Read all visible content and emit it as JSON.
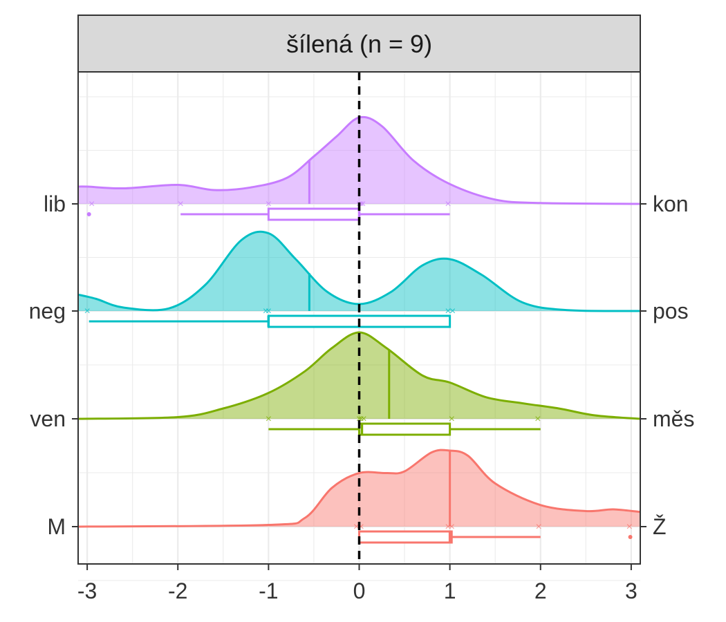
{
  "chart_data": {
    "type": "ridgeline",
    "title": "šílená (n = 9)",
    "xlim": [
      -3.1,
      3.1
    ],
    "x_ticks": [
      -3,
      -2,
      -1,
      0,
      1,
      2,
      3
    ],
    "x_tick_labels": [
      "-3",
      "-2",
      "-1",
      "0",
      "1",
      "2",
      "3"
    ],
    "reference_line_x": 0,
    "grid": true,
    "series": [
      {
        "key": "lib-kon",
        "left_label": "lib",
        "right_label": "kon",
        "color": "#C77CFF",
        "density": [
          [
            -3.1,
            0.2
          ],
          [
            -3.0,
            0.2
          ],
          [
            -2.6,
            0.18
          ],
          [
            -2.0,
            0.22
          ],
          [
            -1.6,
            0.16
          ],
          [
            -1.2,
            0.19
          ],
          [
            -0.8,
            0.3
          ],
          [
            -0.5,
            0.55
          ],
          [
            -0.25,
            0.78
          ],
          [
            0.0,
            1.0
          ],
          [
            0.25,
            0.9
          ],
          [
            0.6,
            0.5
          ],
          [
            1.0,
            0.23
          ],
          [
            1.5,
            0.05
          ],
          [
            2.0,
            0.01
          ],
          [
            3.1,
            0.0
          ]
        ],
        "mean": -0.55,
        "observations": [
          -2.95,
          -1.97,
          -1.0,
          0.0,
          0.02,
          0.04,
          0.98
        ],
        "box": {
          "min": -1.97,
          "q1": -1.0,
          "median": 0.0,
          "q3": 0.0,
          "max": 1.0
        },
        "outliers": [
          -2.98
        ]
      },
      {
        "key": "neg-pos",
        "left_label": "neg",
        "right_label": "pos",
        "color": "#00BFC4",
        "density": [
          [
            -3.1,
            0.19
          ],
          [
            -2.9,
            0.14
          ],
          [
            -2.6,
            0.04
          ],
          [
            -2.1,
            0.03
          ],
          [
            -1.7,
            0.3
          ],
          [
            -1.3,
            0.82
          ],
          [
            -1.0,
            0.9
          ],
          [
            -0.7,
            0.6
          ],
          [
            -0.35,
            0.22
          ],
          [
            0.0,
            0.08
          ],
          [
            0.35,
            0.22
          ],
          [
            0.7,
            0.53
          ],
          [
            1.0,
            0.6
          ],
          [
            1.35,
            0.42
          ],
          [
            1.8,
            0.1
          ],
          [
            2.3,
            0.01
          ],
          [
            3.1,
            0.0
          ]
        ],
        "mean": -0.55,
        "observations": [
          -3.0,
          -1.03,
          -1.0,
          0.98,
          1.03
        ],
        "box": {
          "min": -2.98,
          "q1": -1.0,
          "median": -1.0,
          "q3": 1.0,
          "max": 1.0
        },
        "outliers": []
      },
      {
        "key": "ven-mes",
        "left_label": "ven",
        "right_label": "měs",
        "color": "#7CAE00",
        "density": [
          [
            -3.1,
            0.0
          ],
          [
            -2.0,
            0.02
          ],
          [
            -1.5,
            0.12
          ],
          [
            -1.0,
            0.3
          ],
          [
            -0.6,
            0.55
          ],
          [
            -0.3,
            0.82
          ],
          [
            0.0,
            1.0
          ],
          [
            0.3,
            0.82
          ],
          [
            0.7,
            0.5
          ],
          [
            1.0,
            0.42
          ],
          [
            1.4,
            0.25
          ],
          [
            1.8,
            0.18
          ],
          [
            2.2,
            0.12
          ],
          [
            2.6,
            0.04
          ],
          [
            3.1,
            0.0
          ]
        ],
        "mean": 0.33,
        "observations": [
          -1.0,
          0.0,
          0.02,
          0.05,
          1.02,
          1.97
        ],
        "box": {
          "min": -1.0,
          "q1": 0.0,
          "median": 0.03,
          "q3": 1.0,
          "max": 2.0
        },
        "outliers": []
      },
      {
        "key": "M-Z",
        "left_label": "M",
        "right_label": "Ž",
        "color": "#F8766D",
        "density": [
          [
            -3.1,
            0.0
          ],
          [
            -1.0,
            0.02
          ],
          [
            -0.6,
            0.1
          ],
          [
            -0.3,
            0.45
          ],
          [
            0.0,
            0.62
          ],
          [
            0.3,
            0.62
          ],
          [
            0.5,
            0.64
          ],
          [
            0.8,
            0.86
          ],
          [
            1.0,
            0.88
          ],
          [
            1.2,
            0.82
          ],
          [
            1.5,
            0.5
          ],
          [
            2.0,
            0.25
          ],
          [
            2.5,
            0.18
          ],
          [
            2.8,
            0.2
          ],
          [
            3.1,
            0.17
          ]
        ],
        "mean": 1.0,
        "observations": [
          -0.03,
          0.02,
          0.98,
          1.02,
          1.98,
          2.98
        ],
        "box": {
          "min": 0.0,
          "q1": 0.0,
          "median": 1.0,
          "q3": 1.02,
          "max": 2.0
        },
        "outliers": [
          2.99
        ]
      }
    ]
  }
}
